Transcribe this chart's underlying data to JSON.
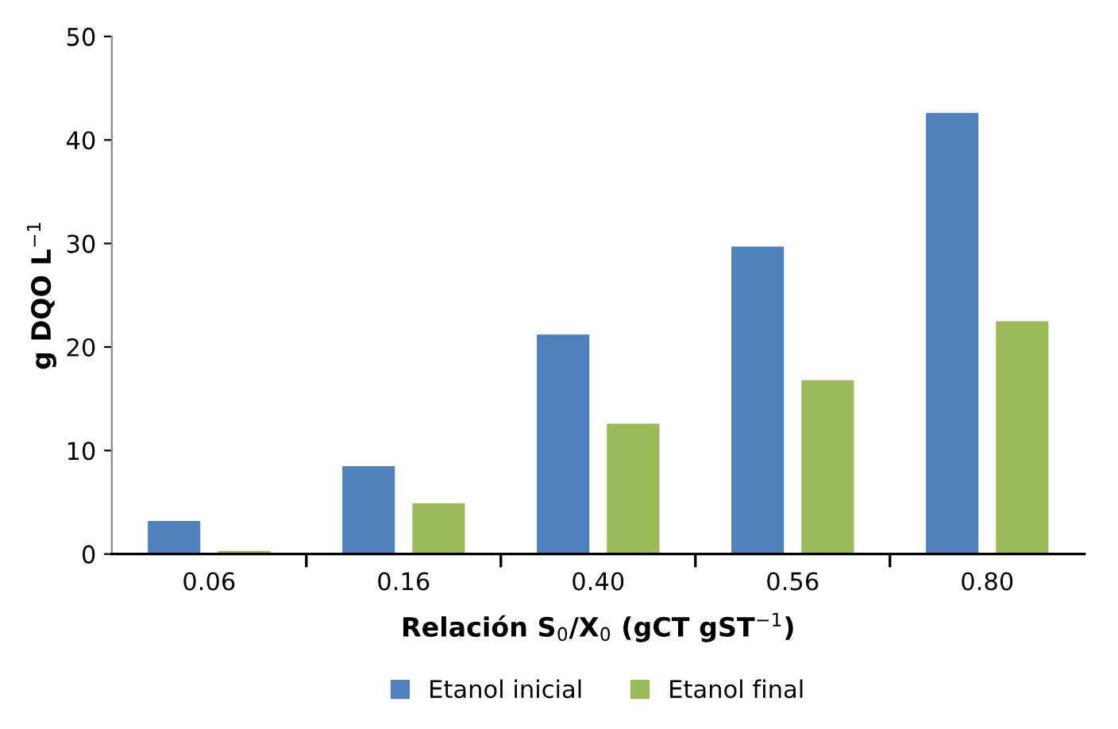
{
  "chart_data": {
    "type": "bar",
    "xlabel": "Relación S$_{0}$/X$_{0}$ (gCT gST$^{−1}$)",
    "ylabel": "g DQO L$^{−1}$",
    "categories": [
      "0.06",
      "0.16",
      "0.40",
      "0.56",
      "0.80"
    ],
    "series": [
      {
        "name": "Etanol inicial",
        "color": "#4f81bd",
        "values": [
          3.2,
          8.5,
          21.2,
          29.7,
          42.6
        ]
      },
      {
        "name": "Etanol final",
        "color": "#9bbb59",
        "values": [
          0.3,
          4.9,
          12.6,
          16.8,
          22.5
        ]
      }
    ],
    "ylim": [
      0,
      50
    ],
    "yticks": [
      0,
      10,
      20,
      30,
      40,
      50
    ],
    "grid": false,
    "legend": "bottom"
  }
}
